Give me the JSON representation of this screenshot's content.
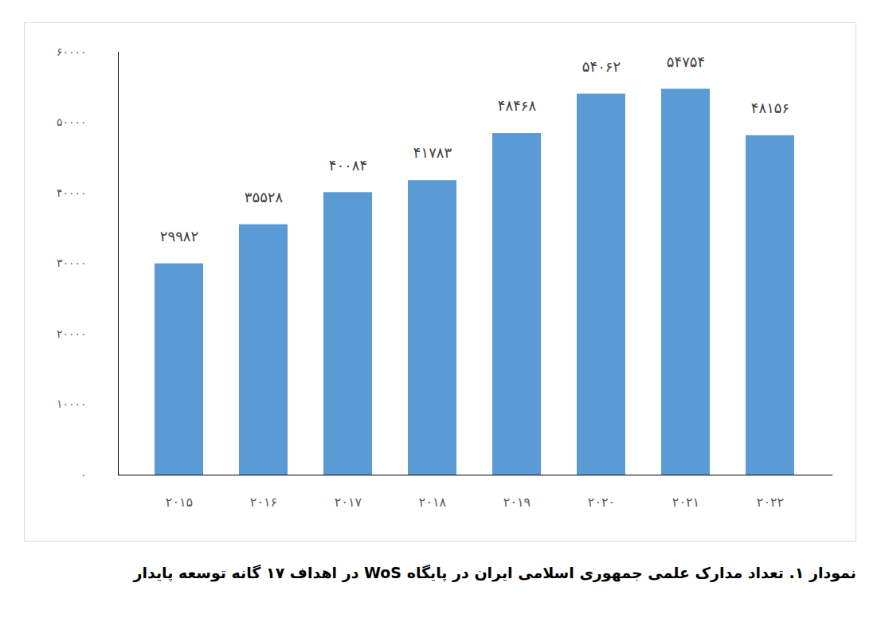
{
  "chart_data": {
    "type": "bar",
    "title": "نمودار ۱. تعداد مدارک علمی جمهوری اسلامی ایران در پایگاه WoS در اهداف ۱۷ گانه توسعه پایدار",
    "categories": [
      "۲۰۱۵",
      "۲۰۱۶",
      "۲۰۱۷",
      "۲۰۱۸",
      "۲۰۱۹",
      "۲۰۲۰",
      "۲۰۲۱",
      "۲۰۲۲"
    ],
    "values": [
      29982,
      35528,
      40084,
      41783,
      48468,
      54062,
      54754,
      48156
    ],
    "value_labels": [
      "۲۹۹۸۲",
      "۳۵۵۲۸",
      "۴۰۰۸۴",
      "۴۱۷۸۳",
      "۴۸۴۶۸",
      "۵۴۰۶۲",
      "۵۴۷۵۴",
      "۴۸۱۵۶"
    ],
    "color": "#5b9bd5",
    "ylim": [
      0,
      60000
    ],
    "yticks": [
      {
        "value": 0,
        "label": "۰"
      },
      {
        "value": 10000,
        "label": "۱۰۰۰۰"
      },
      {
        "value": 20000,
        "label": "۲۰۰۰۰"
      },
      {
        "value": 30000,
        "label": "۳۰۰۰۰"
      },
      {
        "value": 40000,
        "label": "۴۰۰۰۰"
      },
      {
        "value": 50000,
        "label": "۵۰۰۰۰"
      },
      {
        "value": 60000,
        "label": "۶۰۰۰۰"
      }
    ],
    "grid": false,
    "data_labels": true
  }
}
